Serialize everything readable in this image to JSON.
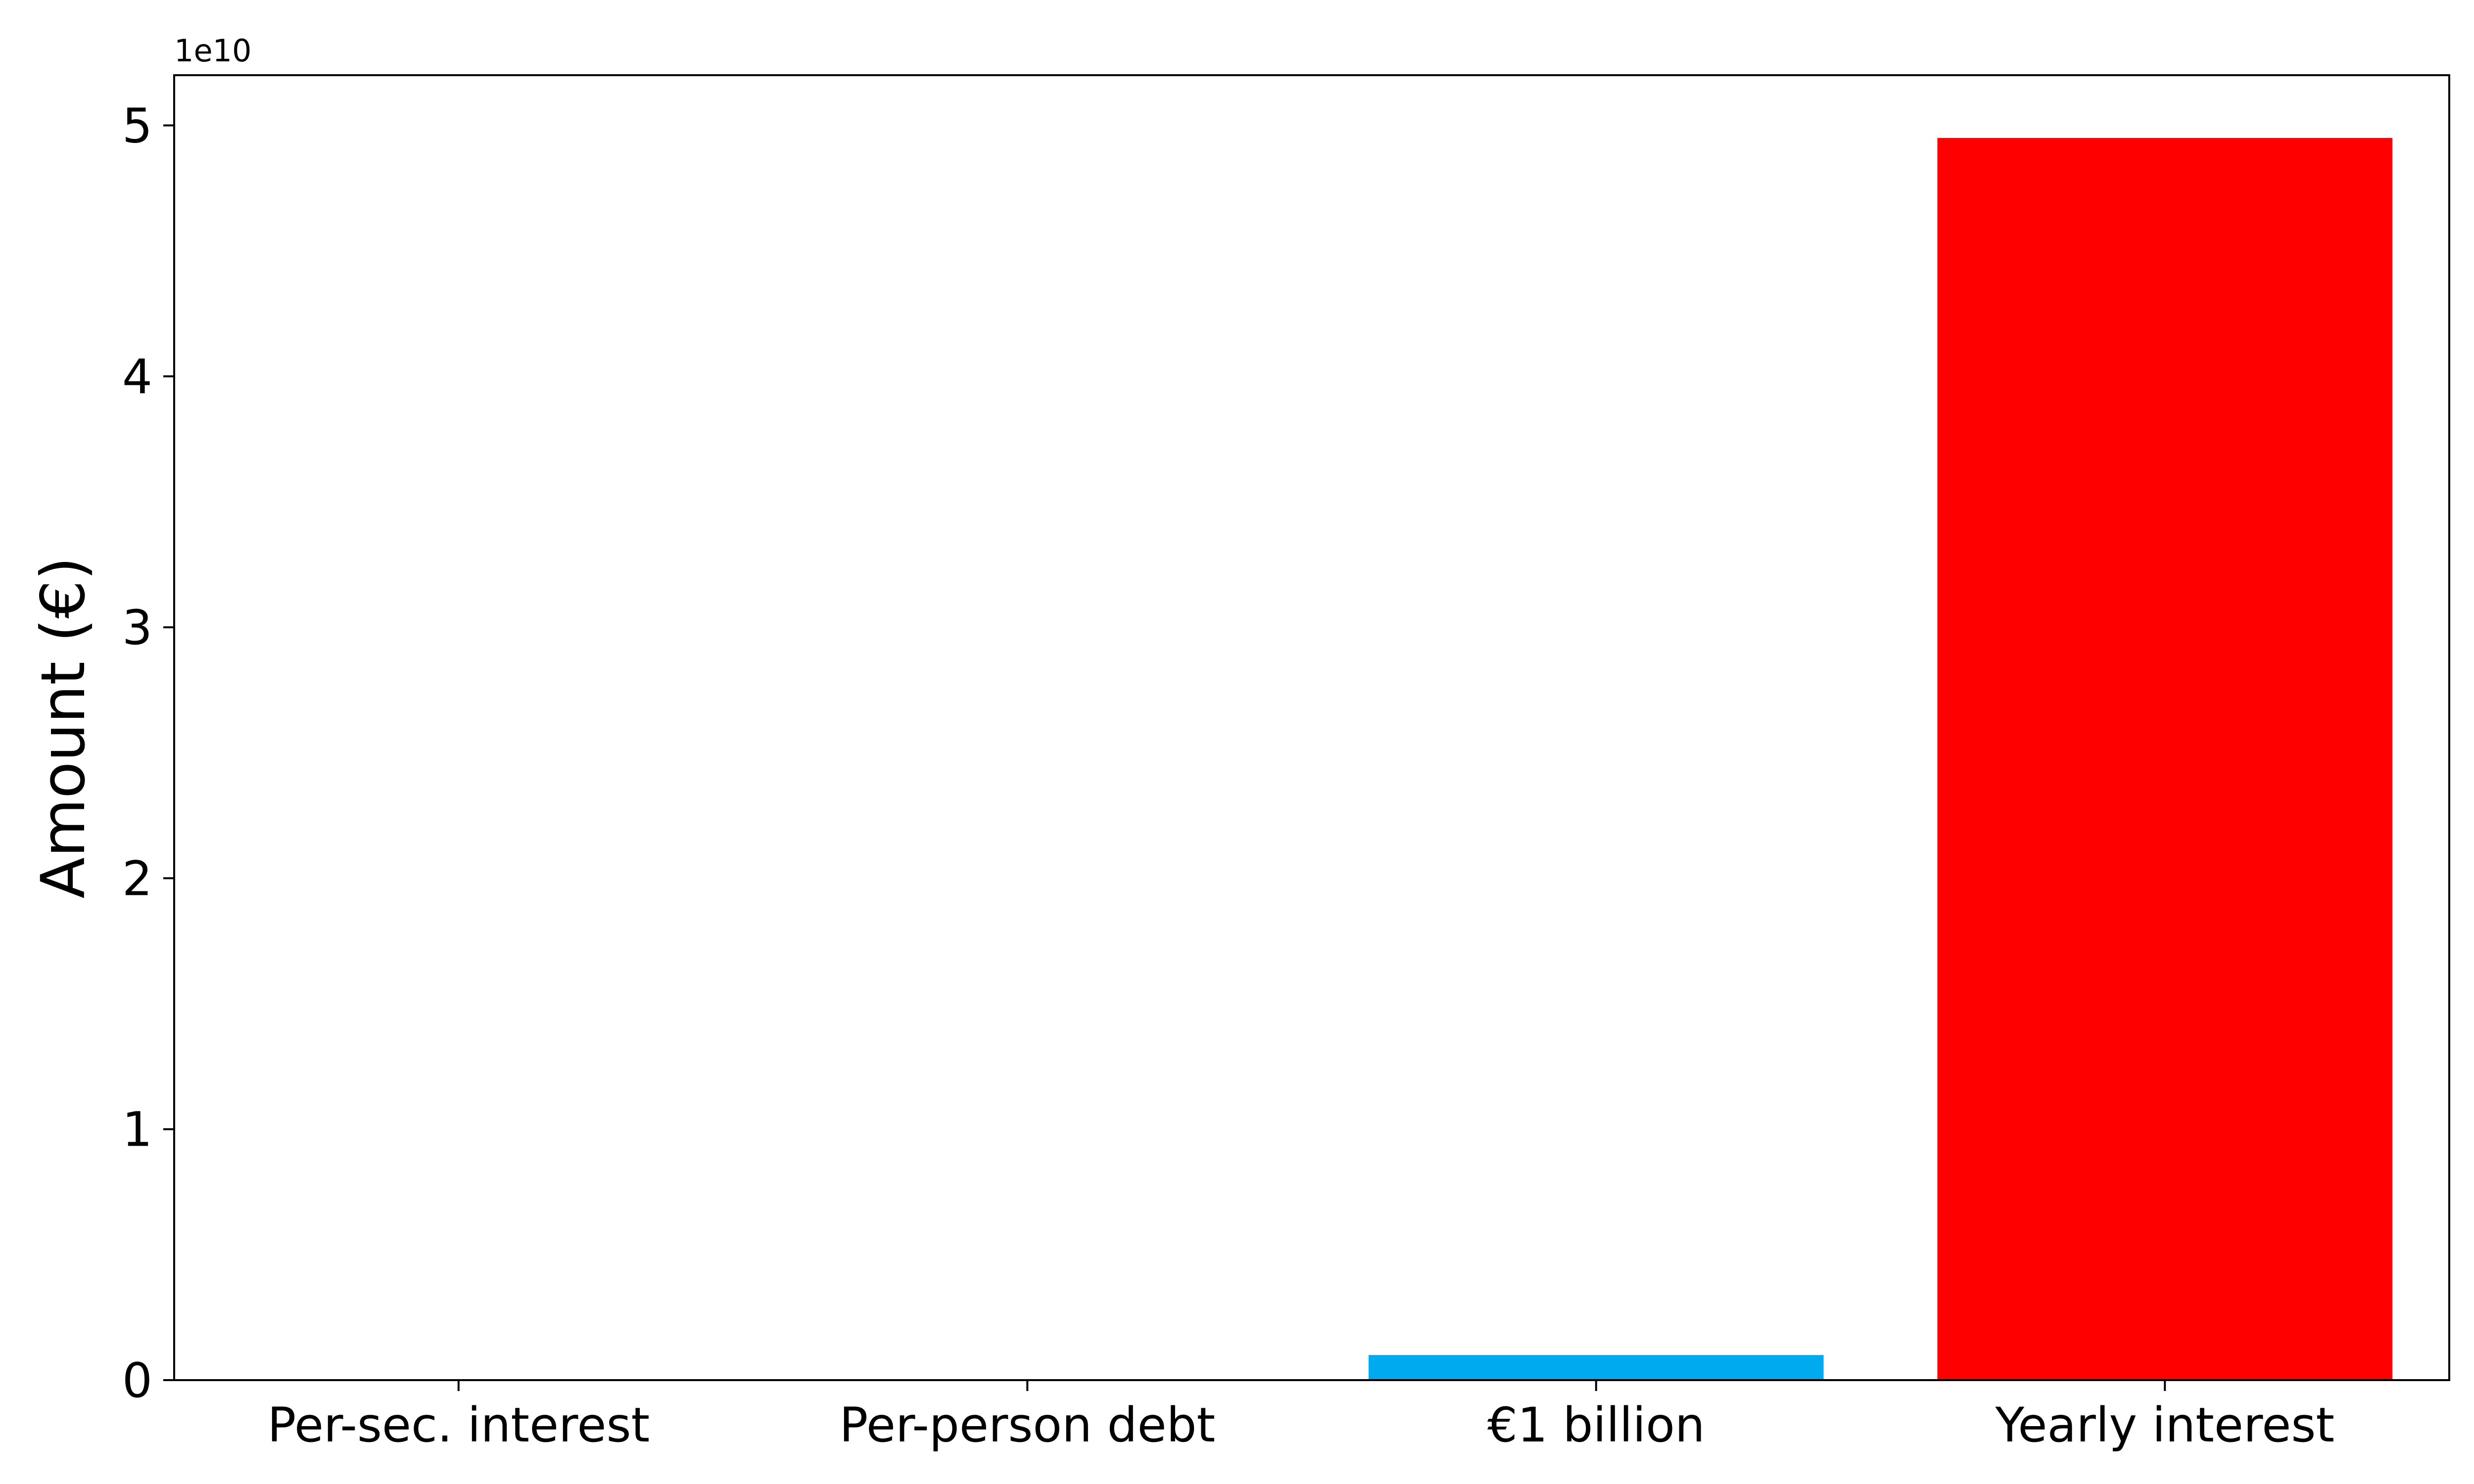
{
  "chart_data": {
    "type": "bar",
    "categories": [
      "Per-sec. interest",
      "Per-person debt",
      "€1 billion",
      "Yearly interest"
    ],
    "values": [
      1570,
      58000,
      1000000000,
      49500000000
    ],
    "colors": [
      "#ffffff",
      "#ffffff",
      "#00aaee",
      "#ff0000"
    ],
    "ylabel": "Amount (€)",
    "xlabel": "",
    "ylim": [
      0,
      52000000000
    ],
    "yticks": [
      0,
      10000000000,
      20000000000,
      30000000000,
      40000000000,
      50000000000
    ],
    "ytick_labels": [
      "0",
      "1",
      "2",
      "3",
      "4",
      "5"
    ],
    "y_offset_label": "1e10",
    "grid": false,
    "legend": "none"
  }
}
